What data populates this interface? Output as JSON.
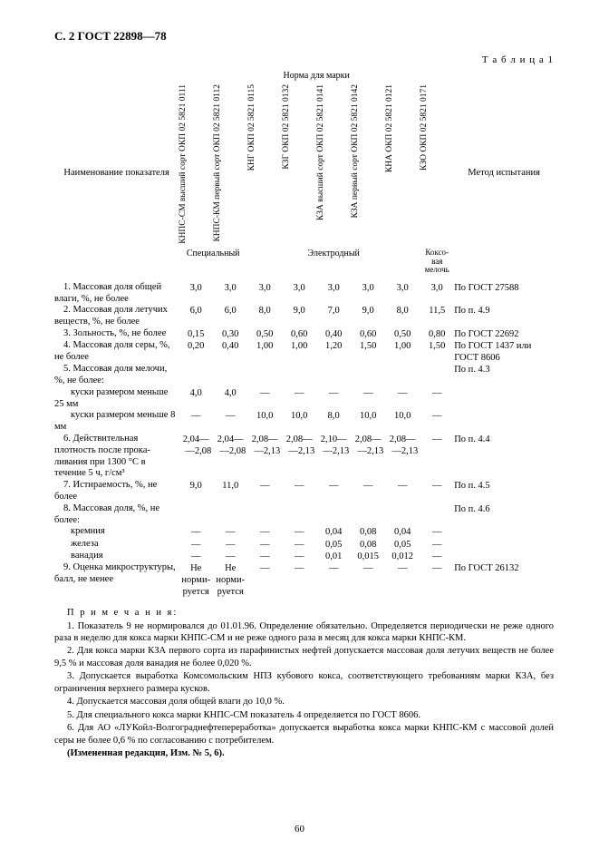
{
  "header": {
    "page_mark": "С. 2 ГОСТ 22898—78"
  },
  "table": {
    "caption": "Т а б л и ц а  1",
    "left_header": "Наименование показателя",
    "top_header": "Норма для марки",
    "right_header": "Метод испытания",
    "cols": [
      {
        "code": "КНПС-СМ\nвысший сорт\nОКП 02 5821 0111"
      },
      {
        "code": "КНПС-КМ\nпервый сорт\nОКП 02 5821 0112"
      },
      {
        "code": "КНГ\nОКП 02 5821 0115"
      },
      {
        "code": "КЗГ\nОКП 02 5821 0132"
      },
      {
        "code": "КЗА\nвысший сорт\nОКП 02 5821 0141"
      },
      {
        "code": "КЗА\nпервый сорт\nОКП 02 5821 0142"
      },
      {
        "code": "КНА\nОКП 02 5821 0121"
      },
      {
        "code": "КЗО\nОКП 02 5821 0171"
      }
    ],
    "groups": {
      "g1": "Специальный",
      "g2": "Электродный",
      "g3": "Коксо-\nвая\nмелочь"
    },
    "rows": [
      {
        "n": "1. Массовая доля об­щей влаги, %, не более",
        "v": [
          "3,0",
          "3,0",
          "3,0",
          "3,0",
          "3,0",
          "3,0",
          "3,0",
          "3,0"
        ],
        "m": "По ГОСТ 27588"
      },
      {
        "n": "2. Массовая доля ле­тучих веществ, %, не более",
        "v": [
          "6,0",
          "6,0",
          "8,0",
          "9,0",
          "7,0",
          "9,0",
          "8,0",
          "11,5"
        ],
        "m": "По п. 4.9"
      },
      {
        "n": "3. Зольность, %, не более",
        "v": [
          "0,15",
          "0,30",
          "0,50",
          "0,60",
          "0,40",
          "0,60",
          "0,50",
          "0,80"
        ],
        "m": "По ГОСТ 22692"
      },
      {
        "n": "4. Массовая доля се­ры, %, не более",
        "v": [
          "0,20",
          "0,40",
          "1,00",
          "1,00",
          "1,20",
          "1,50",
          "1,00",
          "1,50"
        ],
        "m": "По ГОСТ 1437 или ГОСТ 8606"
      },
      {
        "n": "5. Массовая доля ме­лочи, %, не более:",
        "v": [
          "",
          "",
          "",
          "",
          "",
          "",
          "",
          ""
        ],
        "m": "По п. 4.3"
      },
      {
        "n": "куски размером мень­ше 25 мм",
        "sub": true,
        "v": [
          "4,0",
          "4,0",
          "—",
          "—",
          "—",
          "—",
          "—",
          "—"
        ],
        "m": ""
      },
      {
        "n": "куски размером мень­ше 8 мм",
        "sub": true,
        "v": [
          "—",
          "—",
          "10,0",
          "10,0",
          "8,0",
          "10,0",
          "10,0",
          "—"
        ],
        "m": ""
      },
      {
        "n": "6. Действительная плотность после прока­ливания при 1300 °С в течение 5 ч, г/см³",
        "v": [
          "2,04—\n  —2,08",
          "2,04—\n  —2,08",
          "2,08—\n  —2,13",
          "2,08—\n  —2,13",
          "2,10—\n  —2,13",
          "2,08—\n  —2,13",
          "2,08—\n  —2,13",
          "—"
        ],
        "m": "По п. 4.4"
      },
      {
        "n": "7. Истираемость, %, не более",
        "v": [
          "9,0",
          "11,0",
          "—",
          "—",
          "—",
          "—",
          "—",
          "—"
        ],
        "m": "По п. 4.5"
      },
      {
        "n": "8. Массовая доля, %, не более:",
        "v": [
          "",
          "",
          "",
          "",
          "",
          "",
          "",
          ""
        ],
        "m": "По п. 4.6"
      },
      {
        "n": "кремния",
        "sub": true,
        "v": [
          "—",
          "—",
          "—",
          "—",
          "0,04",
          "0,08",
          "0,04",
          "—"
        ],
        "m": ""
      },
      {
        "n": "железа",
        "sub": true,
        "v": [
          "—",
          "—",
          "—",
          "—",
          "0,05",
          "0,08",
          "0,05",
          "—"
        ],
        "m": ""
      },
      {
        "n": "ванадия",
        "sub": true,
        "v": [
          "—",
          "—",
          "—",
          "—",
          "0,01",
          "0,015",
          "0,012",
          "—"
        ],
        "m": ""
      },
      {
        "n": "9. Оценка микро­структуры, балл, не менее",
        "v": [
          "Не\nнорми-\nруется",
          "Не\nнорми-\nруется",
          "—",
          "—",
          "—",
          "—",
          "—",
          "—"
        ],
        "m": "По ГОСТ 26132"
      }
    ]
  },
  "notes": {
    "title": "П р и м е ч а н и я:",
    "items": [
      "1. Показатель 9 не нормировался до 01.01.96. Определение обязательно. Определяется периодически не реже одного раза в неделю для кокса марки КНПС-СМ и не реже одного раза в месяц для кокса марки КНПС-КМ.",
      "2. Для кокса марки КЗА первого сорта из парафинистых нефтей допускается массовая доля летучих веществ не более 9,5 % и массовая доля ванадия не более 0,020 %.",
      "3. Допускается выработка Комсомольским НПЗ кубового кокса, соответствующего требованиям марки КЗА, без ограничения верхнего размера кусков.",
      "4. Допускается массовая доля общей влаги до 10,0 %.",
      "5. Для специального кокса марки КНПС-СМ показатель 4 определяется по ГОСТ 8606.",
      "6. Для АО «ЛУКойл-Волгограднефтепереработка» допускается выработка кокса марки КНПС-КМ с массовой долей серы не более 0,6 % по согласованию с потребителем."
    ],
    "amend": "(Измененная редакция, Изм. № 5, 6)."
  },
  "pagenum": "60",
  "layout": {
    "colwidths": {
      "name": 130,
      "data": 36,
      "method": 110
    }
  }
}
